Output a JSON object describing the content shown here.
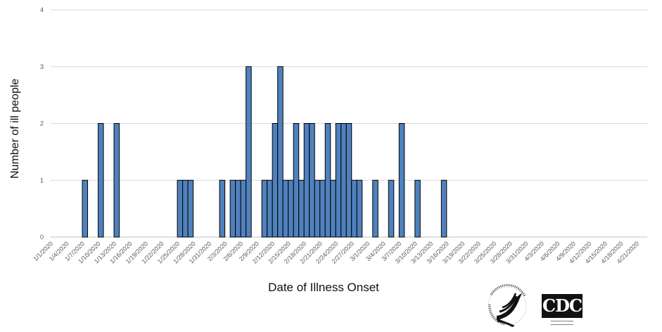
{
  "chart_data": {
    "type": "bar",
    "xlabel": "Date of Illness Onset",
    "ylabel": "Number of ill people",
    "ylim": [
      0,
      4
    ],
    "yticks": [
      0,
      1,
      2,
      3,
      4
    ],
    "grid": true,
    "bar_color": "#4f81bd",
    "bar_edge_color": "#000000",
    "start_date": "1/1/2020",
    "end_date": "4/23/2020",
    "x_tick_labels": [
      "1/1/2020",
      "1/4/2020",
      "1/7/2020",
      "1/10/2020",
      "1/13/2020",
      "1/16/2020",
      "1/19/2020",
      "1/22/2020",
      "1/25/2020",
      "1/28/2020",
      "1/31/2020",
      "2/3/2020",
      "2/6/2020",
      "2/9/2020",
      "2/12/2020",
      "2/15/2020",
      "2/18/2020",
      "2/21/2020",
      "2/24/2020",
      "2/27/2020",
      "3/1/2020",
      "3/4/2020",
      "3/7/2020",
      "3/10/2020",
      "3/13/2020",
      "3/16/2020",
      "3/19/2020",
      "3/22/2020",
      "3/25/2020",
      "3/28/2020",
      "3/31/2020",
      "4/3/2020",
      "4/6/2020",
      "4/9/2020",
      "4/12/2020",
      "4/15/2020",
      "4/18/2020",
      "4/21/2020"
    ],
    "series": [
      {
        "x": [
          "1/7/2020",
          "1/10/2020",
          "1/13/2020",
          "1/25/2020",
          "1/26/2020",
          "1/27/2020",
          "2/2/2020",
          "2/4/2020",
          "2/5/2020",
          "2/6/2020",
          "2/7/2020",
          "2/10/2020",
          "2/11/2020",
          "2/12/2020",
          "2/13/2020",
          "2/14/2020",
          "2/15/2020",
          "2/16/2020",
          "2/17/2020",
          "2/18/2020",
          "2/19/2020",
          "2/20/2020",
          "2/21/2020",
          "2/22/2020",
          "2/23/2020",
          "2/24/2020",
          "2/25/2020",
          "2/26/2020",
          "2/27/2020",
          "2/28/2020",
          "3/2/2020",
          "3/5/2020",
          "3/7/2020",
          "3/10/2020",
          "3/15/2020"
        ],
        "values": [
          1,
          2,
          2,
          1,
          1,
          1,
          1,
          1,
          1,
          1,
          3,
          1,
          1,
          2,
          3,
          1,
          1,
          2,
          1,
          2,
          2,
          1,
          1,
          2,
          1,
          2,
          2,
          2,
          1,
          1,
          1,
          1,
          2,
          1,
          1
        ]
      }
    ]
  },
  "logos": {
    "hhs": "hhs-eagle-seal-logo",
    "cdc": "cdc-logo"
  }
}
